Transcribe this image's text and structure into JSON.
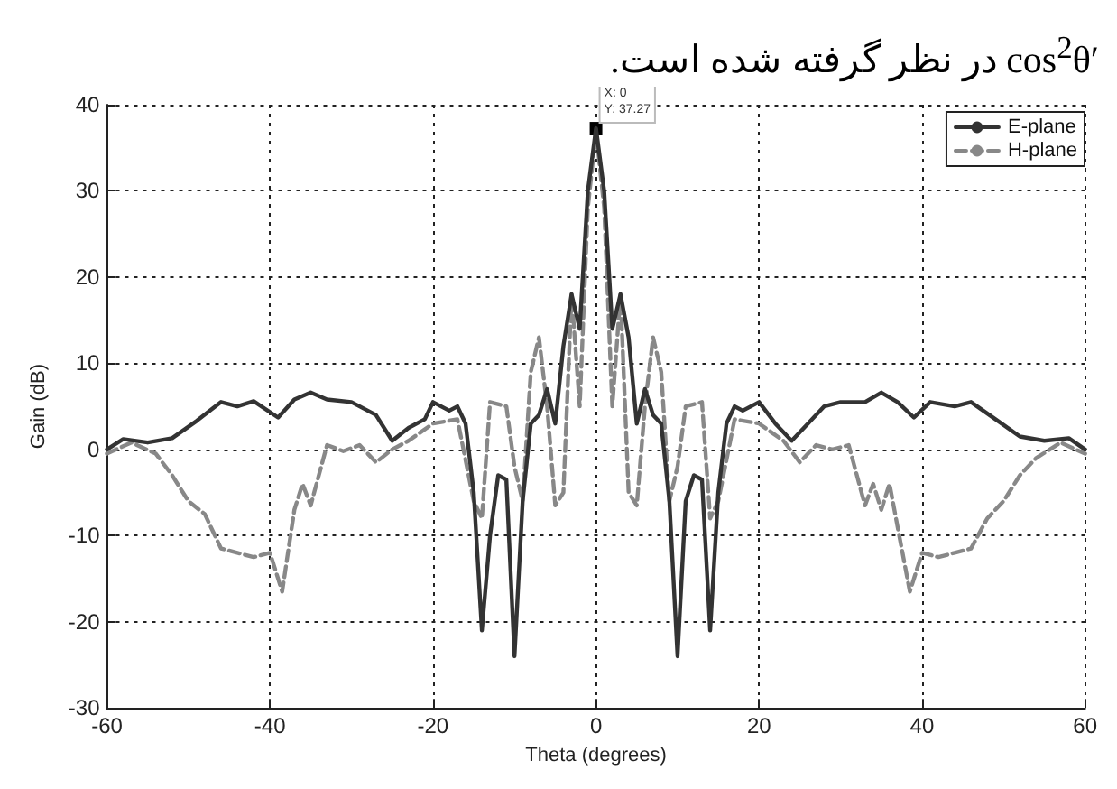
{
  "chart_data": {
    "type": "line",
    "title": "cos$^{2}$θ′ در نظر گرفته شده است.",
    "xlabel": "Theta (degrees)",
    "ylabel": "Gain (dB)",
    "xlim": [
      -60,
      60
    ],
    "xticks": [
      -60,
      -40,
      -20,
      0,
      20,
      40,
      60
    ],
    "ylim": [
      -30,
      40
    ],
    "yticks": [
      -30,
      -20,
      -10,
      0,
      10,
      20,
      30,
      40
    ],
    "grid": true,
    "legend": "top right",
    "marker": "none",
    "annotations": [
      {
        "text": "X: 0\nY: 37.27",
        "x": 0,
        "y": 37.27
      }
    ],
    "series": [
      {
        "name": "E-plane",
        "color": "#333333",
        "line_style": "solid",
        "x": [
          -60,
          -58,
          -55,
          -52,
          -49,
          -46,
          -44,
          -42,
          -39,
          -37,
          -35,
          -33,
          -30,
          -27,
          -25,
          -23,
          -21,
          -20,
          -18,
          -17,
          -16,
          -15,
          -14,
          -13,
          -12,
          -11,
          -10,
          -9,
          -8,
          -7,
          -6,
          -5,
          -4,
          -3,
          -2,
          -1.5,
          -1,
          0,
          1,
          1.5,
          2,
          3,
          4,
          5,
          6,
          7,
          8,
          9,
          10,
          11,
          12,
          13,
          14,
          15,
          16,
          17,
          18,
          20,
          22,
          24,
          26,
          28,
          30,
          33,
          35,
          37,
          39,
          41,
          44,
          46,
          49,
          52,
          55,
          58,
          60
        ],
        "values": [
          0,
          1.2,
          0.8,
          1.3,
          3.3,
          5.5,
          5,
          5.6,
          3.7,
          5.8,
          6.6,
          5.8,
          5.5,
          4,
          1,
          2.5,
          3.5,
          5.5,
          4.5,
          5,
          3,
          -5,
          -21,
          -10,
          -3,
          -3.5,
          -24,
          -6,
          3,
          4,
          7,
          3,
          12,
          18,
          14,
          22,
          30,
          37.27,
          30,
          22,
          14,
          18,
          13,
          3,
          7,
          4,
          3,
          -6,
          -24,
          -6,
          -3,
          -3.5,
          -21,
          -5,
          3,
          5,
          4.5,
          5.5,
          3,
          1,
          3,
          5,
          5.5,
          5.5,
          6.6,
          5.5,
          3.7,
          5.5,
          5,
          5.5,
          3.5,
          1.5,
          1,
          1.3,
          0
        ]
      },
      {
        "name": "H-plane",
        "color": "#888888",
        "line_style": "dashed",
        "x": [
          -60,
          -57,
          -54,
          -52,
          -50,
          -48,
          -46,
          -44,
          -42,
          -40,
          -38.5,
          -37,
          -36,
          -35,
          -33,
          -31,
          -29,
          -27,
          -25,
          -23,
          -20,
          -17,
          -15,
          -14,
          -13,
          -11,
          -10,
          -9,
          -8,
          -7,
          -6,
          -5,
          -4,
          -3,
          -2,
          -1,
          0,
          1,
          2,
          3,
          4,
          5,
          6,
          7,
          8,
          9,
          10,
          11,
          13,
          14,
          15,
          17,
          20,
          23,
          25,
          27,
          29,
          31,
          33,
          34,
          35,
          36,
          38.5,
          40,
          42,
          44,
          46,
          48,
          50,
          52,
          54,
          57,
          60
        ],
        "values": [
          -0.5,
          0.8,
          -0.5,
          -3,
          -6,
          -7.5,
          -11.5,
          -12,
          -12.5,
          -12,
          -16.5,
          -7,
          -4,
          -6.5,
          0.5,
          -0.2,
          0.5,
          -1.5,
          0,
          1,
          3,
          3.5,
          -6,
          -8,
          5.5,
          5,
          -2,
          -6,
          9,
          13,
          5,
          -6.5,
          -5,
          18,
          5,
          28,
          37,
          28,
          5,
          18,
          -5,
          -6.5,
          5,
          13,
          9,
          -6,
          -2,
          5,
          5.5,
          -8,
          -6,
          3.5,
          3,
          1,
          -1.5,
          0.5,
          0,
          0.5,
          -6.5,
          -4,
          -7,
          -4,
          -16.5,
          -12,
          -12.5,
          -12,
          -11.5,
          -8,
          -6,
          -3,
          -1,
          0.8,
          -0.5
        ]
      }
    ]
  }
}
